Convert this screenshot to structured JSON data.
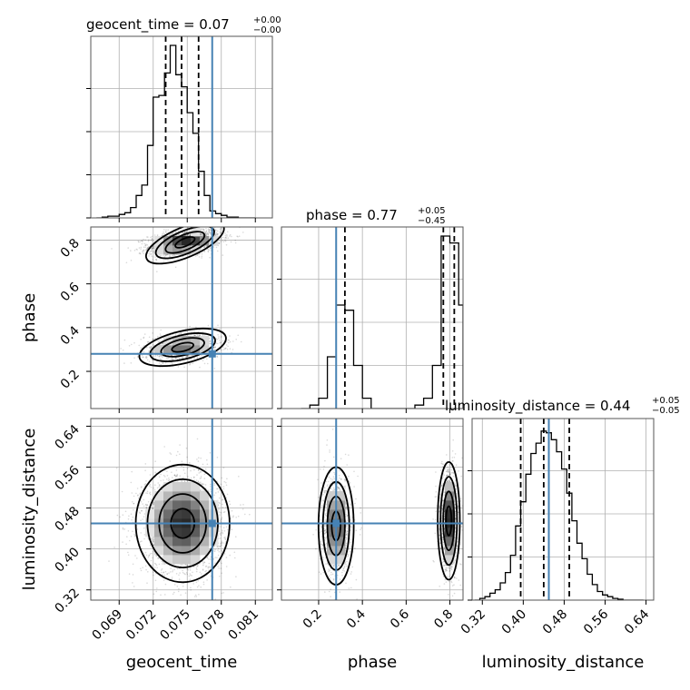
{
  "chart_data": {
    "type": "corner",
    "params": [
      "geocent_time",
      "phase",
      "luminosity_distance"
    ],
    "truths": {
      "geocent_time": 0.0772,
      "phase": 0.28,
      "luminosity_distance": 0.45
    },
    "titles": [
      {
        "param": "geocent_time",
        "main": "geocent_time = 0.07",
        "sup": "+0.00",
        "sub": "−0.00"
      },
      {
        "param": "phase",
        "main": "phase = 0.77",
        "sup": "+0.05",
        "sub": "−0.45"
      },
      {
        "param": "luminosity_distance",
        "main": "luminosity_distance = 0.44",
        "sup": "+0.05",
        "sub": "−0.05"
      }
    ],
    "axes": {
      "geocent_time": {
        "range": [
          0.0665,
          0.0825
        ],
        "ticks": [
          0.069,
          0.072,
          0.075,
          0.078,
          0.081
        ],
        "tick_labels": [
          "0.069",
          "0.072",
          "0.075",
          "0.078",
          "0.081"
        ]
      },
      "phase": {
        "range": [
          0.03,
          0.86
        ],
        "ticks": [
          0.2,
          0.4,
          0.6,
          0.8
        ],
        "tick_labels": [
          "0.2",
          "0.4",
          "0.6",
          "0.8"
        ]
      },
      "luminosity_distance": {
        "range": [
          0.3,
          0.655
        ],
        "ticks": [
          0.32,
          0.4,
          0.48,
          0.56,
          0.64
        ],
        "tick_labels": [
          "0.32",
          "0.40",
          "0.48",
          "0.56",
          "0.64"
        ]
      }
    },
    "histograms": {
      "geocent_time": {
        "bin_edges": [
          0.067,
          0.0675,
          0.068,
          0.0685,
          0.069,
          0.0695,
          0.07,
          0.0705,
          0.071,
          0.0715,
          0.072,
          0.0725,
          0.073,
          0.0735,
          0.074,
          0.0745,
          0.075,
          0.0755,
          0.076,
          0.0765,
          0.077,
          0.0775,
          0.078,
          0.0785,
          0.079,
          0.0795,
          0.08,
          0.0805,
          0.081
        ],
        "counts": [
          0.0,
          0.005,
          0.01,
          0.01,
          0.02,
          0.03,
          0.06,
          0.13,
          0.19,
          0.42,
          0.7,
          0.71,
          0.84,
          1.0,
          0.83,
          0.76,
          0.61,
          0.49,
          0.27,
          0.13,
          0.04,
          0.025,
          0.015,
          0.005,
          0.005,
          0.0,
          0.0,
          0.0
        ],
        "quantiles": [
          0.0731,
          0.0745,
          0.076
        ]
      },
      "phase": {
        "bin_edges": [
          0.12,
          0.16,
          0.2,
          0.24,
          0.28,
          0.32,
          0.36,
          0.4,
          0.44,
          0.48,
          0.52,
          0.56,
          0.6,
          0.64,
          0.68,
          0.72,
          0.76,
          0.8,
          0.84,
          0.86
        ],
        "counts": [
          0.0,
          0.02,
          0.06,
          0.3,
          0.6,
          0.57,
          0.25,
          0.06,
          0.0,
          0.0,
          0.0,
          0.0,
          0.0,
          0.02,
          0.06,
          0.25,
          1.0,
          0.96,
          0.6
        ],
        "quantiles": [
          0.32,
          0.77,
          0.82
        ]
      },
      "luminosity_distance": {
        "bin_edges": [
          0.305,
          0.315,
          0.325,
          0.335,
          0.345,
          0.355,
          0.365,
          0.375,
          0.385,
          0.395,
          0.405,
          0.415,
          0.425,
          0.435,
          0.445,
          0.455,
          0.465,
          0.475,
          0.485,
          0.495,
          0.505,
          0.515,
          0.525,
          0.535,
          0.545,
          0.555,
          0.565,
          0.575,
          0.585,
          0.595,
          0.605,
          0.615,
          0.625,
          0.635
        ],
        "counts": [
          0.0,
          0.01,
          0.02,
          0.04,
          0.06,
          0.1,
          0.16,
          0.26,
          0.43,
          0.57,
          0.73,
          0.85,
          0.91,
          0.98,
          0.97,
          0.93,
          0.86,
          0.76,
          0.62,
          0.46,
          0.33,
          0.24,
          0.15,
          0.09,
          0.05,
          0.03,
          0.02,
          0.01,
          0.005,
          0.0,
          0.0,
          0.0,
          0.0
        ],
        "quantiles": [
          0.395,
          0.44,
          0.49
        ]
      }
    },
    "contour_levels": [
      "0.5-sigma",
      "1-sigma",
      "1.5-sigma",
      "2-sigma"
    ],
    "grid": true,
    "colors": {
      "truth": "#4682b4",
      "ink": "#000000",
      "grid": "#b0b0b0",
      "density_dark": "#3a3a3a",
      "density_light": "#e0e0e0"
    }
  }
}
